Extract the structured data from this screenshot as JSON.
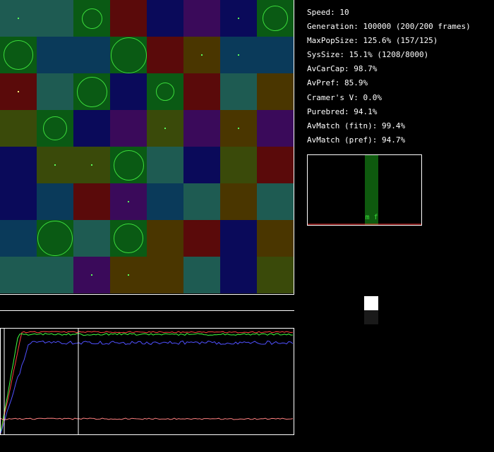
{
  "stats": {
    "speed": "Speed: 10",
    "generation": "Generation: 100000 (200/200 frames)",
    "max_pop_size": "MaxPopSize: 125.6% (157/125)",
    "sys_size": "SysSize: 15.1% (1208/8000)",
    "av_car_cap": "AvCarCap: 98.7%",
    "av_pref": "AvPref: 85.9%",
    "cramers_v": "Cramer's V: 0.0%",
    "purebred": "Purebred: 94.1%",
    "av_match_fitn": "AvMatch (fitn): 99.4%",
    "av_match_pref": "AvMatch (pref): 94.7%"
  },
  "histogram": {
    "labels": "m f",
    "bar_color": "#0e5a0e"
  },
  "grid": {
    "rows": [
      [
        "#1e5b52",
        "#1e5b52",
        "#0a5a14",
        "#5a0a0a",
        "#0a0a5a",
        "#3a0a5a",
        "#0a0a5a",
        "#0a5a14"
      ],
      [
        "#0a5a14",
        "#0a3a5a",
        "#0a3a5a",
        "#0a5a14",
        "#5a0a0a",
        "#4a3600",
        "#0a3a5a",
        "#0a3a5a"
      ],
      [
        "#5a0a0a",
        "#1e5b52",
        "#0a5a14",
        "#0a0a5a",
        "#0a5a14",
        "#5a0a0a",
        "#1e5b52",
        "#4a3600"
      ],
      [
        "#3a4a0a",
        "#0a5a14",
        "#0a0a5a",
        "#3a0a5a",
        "#3a4a0a",
        "#3a0a5a",
        "#4a3600",
        "#3a0a5a"
      ],
      [
        "#0a0a5a",
        "#3a4a0a",
        "#3a4a0a",
        "#0a5a14",
        "#1e5b52",
        "#0a0a5a",
        "#3a4a0a",
        "#5a0a0a"
      ],
      [
        "#0a0a5a",
        "#0a3a5a",
        "#5a0a0a",
        "#3a0a5a",
        "#0a3a5a",
        "#1e5b52",
        "#4a3600",
        "#1e5b52"
      ],
      [
        "#0a3a5a",
        "#0a5a14",
        "#1e5b52",
        "#0a5a14",
        "#4a3600",
        "#5a0a0a",
        "#0a0a5a",
        "#4a3600"
      ],
      [
        "#1e5b52",
        "#1e5b52",
        "#3a0a5a",
        "#4a3600",
        "#4a3600",
        "#1e5b52",
        "#0a0a5a",
        "#3a4a0a"
      ]
    ],
    "circles": [
      {
        "row": 0,
        "col": 2,
        "size": 0.55
      },
      {
        "row": 0,
        "col": 7,
        "size": 0.7
      },
      {
        "row": 1,
        "col": 0,
        "size": 0.8
      },
      {
        "row": 1,
        "col": 3,
        "size": 0.98
      },
      {
        "row": 2,
        "col": 2,
        "size": 0.82
      },
      {
        "row": 2,
        "col": 4,
        "size": 0.5
      },
      {
        "row": 3,
        "col": 1,
        "size": 0.66
      },
      {
        "row": 4,
        "col": 3,
        "size": 0.82
      },
      {
        "row": 6,
        "col": 1,
        "size": 0.96
      },
      {
        "row": 6,
        "col": 3,
        "size": 0.8
      }
    ],
    "dots": [
      {
        "row": 0,
        "col": 0,
        "color": "#5aff5a"
      },
      {
        "row": 0,
        "col": 6,
        "color": "#5aff5a"
      },
      {
        "row": 1,
        "col": 5,
        "color": "#5aff5a"
      },
      {
        "row": 1,
        "col": 6,
        "color": "#5aff5a"
      },
      {
        "row": 2,
        "col": 0,
        "color": "#ffff7a"
      },
      {
        "row": 3,
        "col": 4,
        "color": "#5aff5a"
      },
      {
        "row": 3,
        "col": 6,
        "color": "#5aff5a"
      },
      {
        "row": 4,
        "col": 1,
        "color": "#5aff5a"
      },
      {
        "row": 4,
        "col": 2,
        "color": "#5aff5a"
      },
      {
        "row": 5,
        "col": 3,
        "color": "#5aff5a"
      },
      {
        "row": 7,
        "col": 2,
        "color": "#5aff5a"
      },
      {
        "row": 7,
        "col": 3,
        "color": "#5aff5a"
      }
    ]
  },
  "matrix": {
    "bright_cell_color": "#ffffff",
    "dim_cell_color": "#1a1a1a"
  },
  "plot": {
    "series_colors": [
      "#ff4040",
      "#40ff40",
      "#5050ff",
      "#ff8080",
      "#ffffff"
    ]
  }
}
